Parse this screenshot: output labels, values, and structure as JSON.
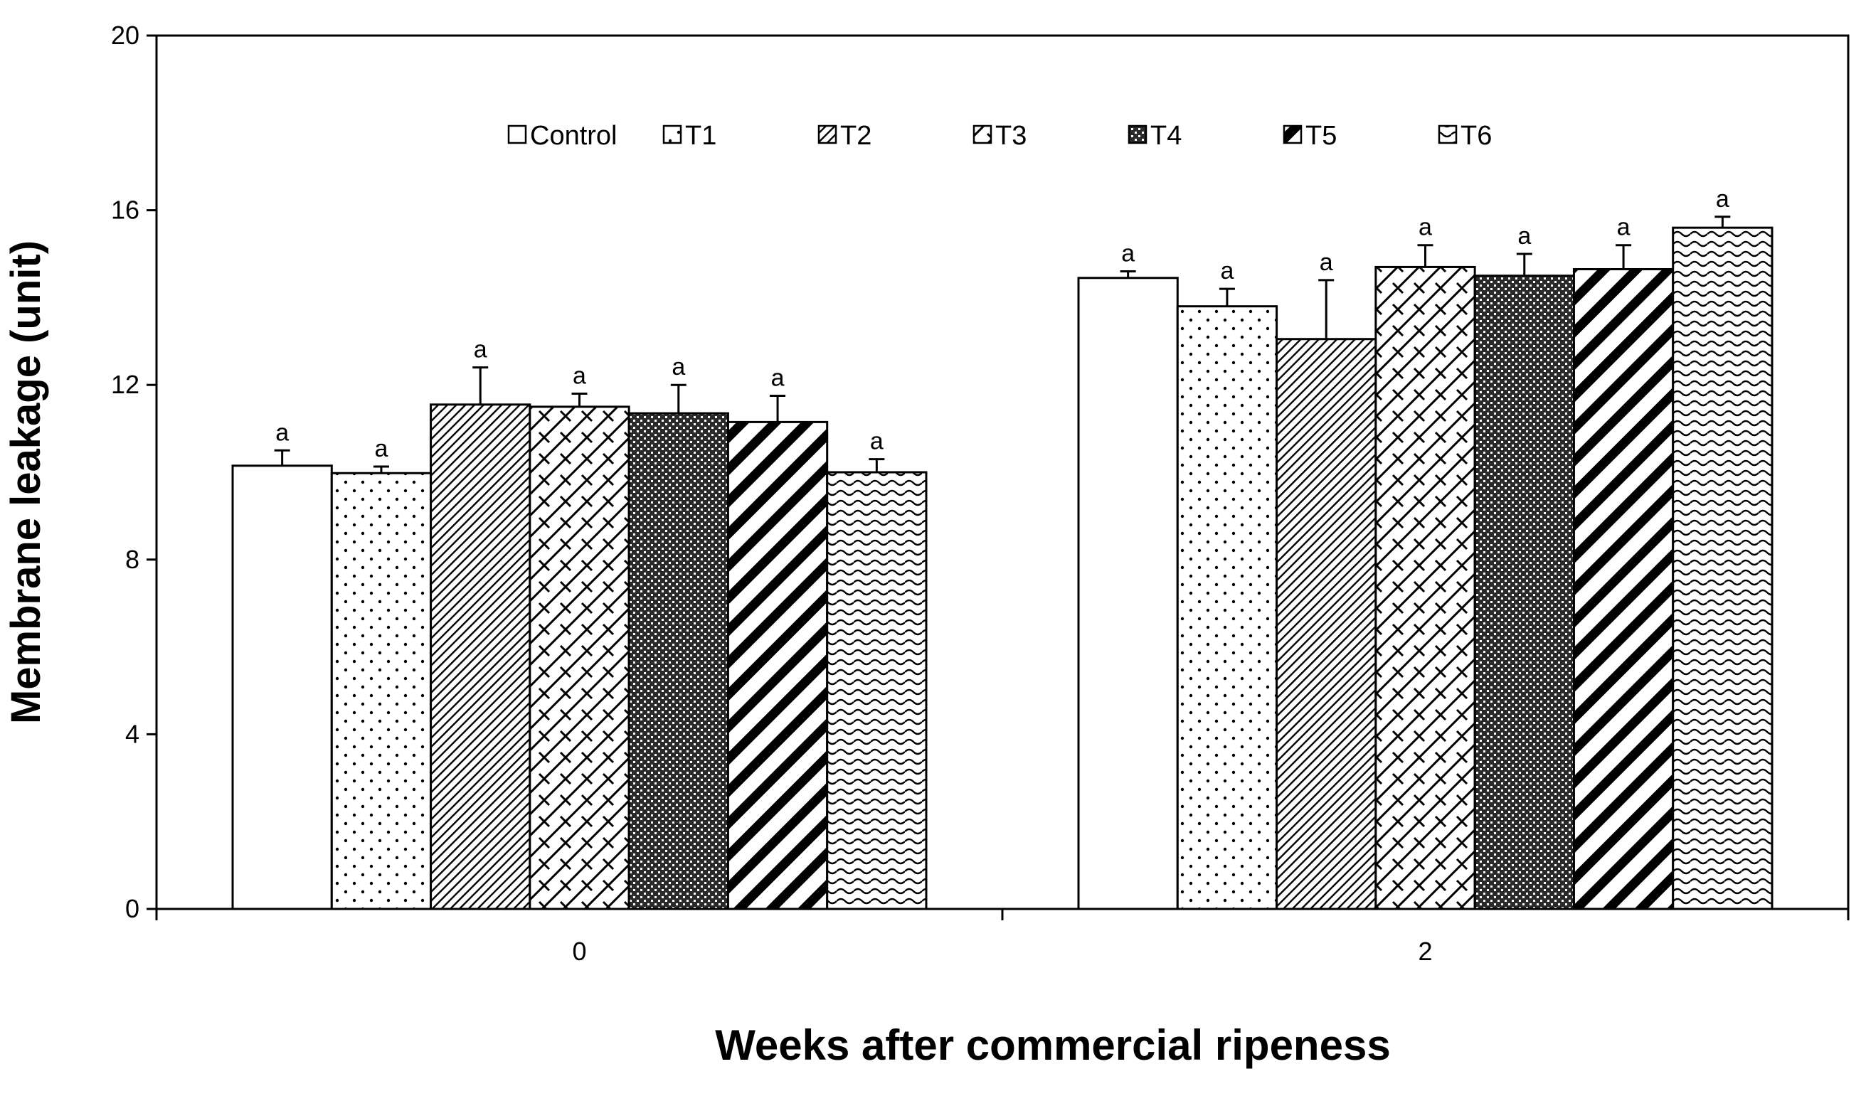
{
  "chart_data": {
    "type": "bar",
    "title": "",
    "xlabel": "Weeks after commercial ripeness",
    "ylabel": "Membrane leakage (unit)",
    "categories": [
      "0",
      "2"
    ],
    "ylim": [
      0,
      20
    ],
    "yticks": [
      0,
      4,
      8,
      12,
      16,
      20
    ],
    "legend_position": "top-center",
    "series": [
      {
        "name": "Control",
        "pattern": "none",
        "values": [
          10.15,
          14.45
        ],
        "errors": [
          0.35,
          0.15
        ],
        "letters": [
          "a",
          "a"
        ]
      },
      {
        "name": "T1",
        "pattern": "dots",
        "values": [
          9.98,
          13.8
        ],
        "errors": [
          0.15,
          0.4
        ],
        "letters": [
          "a",
          "a"
        ]
      },
      {
        "name": "T2",
        "pattern": "fine-diag",
        "values": [
          11.55,
          13.05
        ],
        "errors": [
          0.85,
          1.35
        ],
        "letters": [
          "a",
          "a"
        ]
      },
      {
        "name": "T3",
        "pattern": "zigzag",
        "values": [
          11.5,
          14.7
        ],
        "errors": [
          0.3,
          0.5
        ],
        "letters": [
          "a",
          "a"
        ]
      },
      {
        "name": "T4",
        "pattern": "checker",
        "values": [
          11.35,
          14.5
        ],
        "errors": [
          0.65,
          0.5
        ],
        "letters": [
          "a",
          "a"
        ]
      },
      {
        "name": "T5",
        "pattern": "wide-diag",
        "values": [
          11.15,
          14.65
        ],
        "errors": [
          0.6,
          0.55
        ],
        "letters": [
          "a",
          "a"
        ]
      },
      {
        "name": "T6",
        "pattern": "wave",
        "values": [
          10.0,
          15.6
        ],
        "errors": [
          0.3,
          0.25
        ],
        "letters": [
          "a",
          "a"
        ]
      }
    ]
  }
}
